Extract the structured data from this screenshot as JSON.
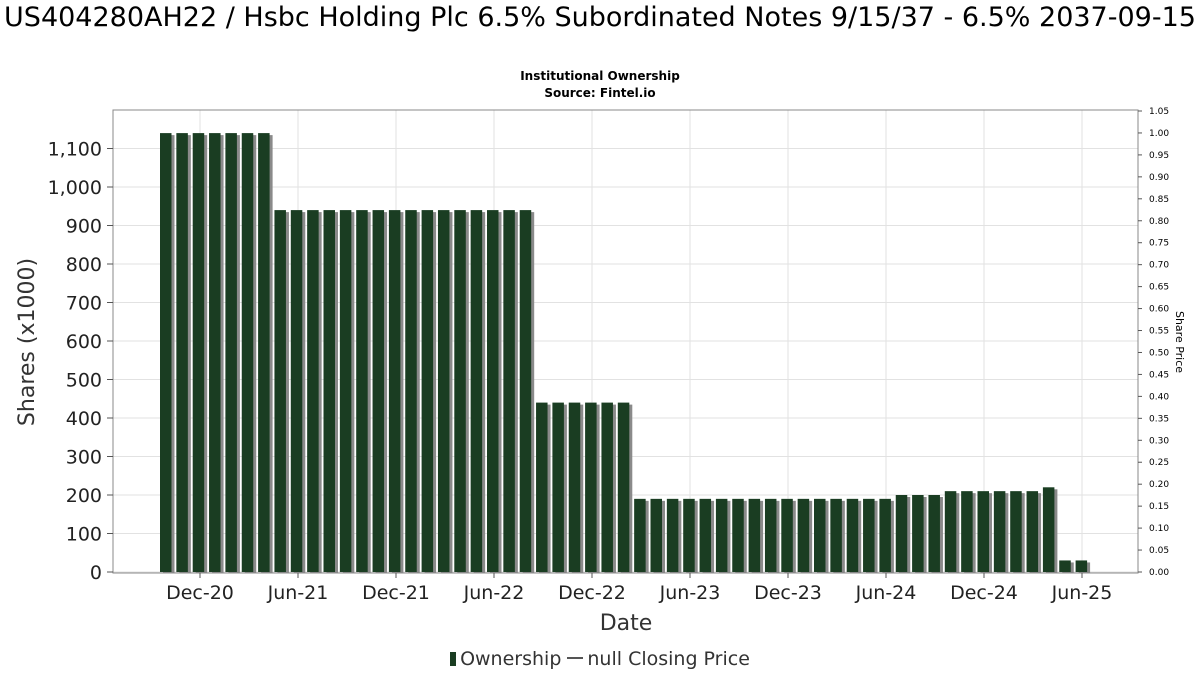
{
  "chart_data": {
    "type": "bar",
    "title": "US404280AH22 / Hsbc Holding Plc 6.5% Subordinated Notes 9/15/37 - 6.5% 2037-09-15",
    "subtitle_lines": [
      "Institutional Ownership",
      "Source: Fintel.io"
    ],
    "xlabel": "Date",
    "ylabel": "Shares (x1000)",
    "y2label": "Share Price",
    "ylim": [
      0,
      1200
    ],
    "y2lim": [
      0,
      1.05
    ],
    "yticks": [
      0,
      100,
      200,
      300,
      400,
      500,
      600,
      700,
      800,
      900,
      1000,
      1100
    ],
    "ytick_labels": [
      "0",
      "100",
      "200",
      "300",
      "400",
      "500",
      "600",
      "700",
      "800",
      "900",
      "1,000",
      "1,100"
    ],
    "y2ticks": [
      0.0,
      0.05,
      0.1,
      0.15,
      0.2,
      0.25,
      0.3,
      0.35,
      0.4,
      0.45,
      0.5,
      0.55,
      0.6,
      0.65,
      0.7,
      0.75,
      0.8,
      0.85,
      0.9,
      0.95,
      1.0,
      1.05
    ],
    "y2tick_labels": [
      "0.00",
      "0.05",
      "0.10",
      "0.15",
      "0.20",
      "0.25",
      "0.30",
      "0.35",
      "0.40",
      "0.45",
      "0.50",
      "0.55",
      "0.60",
      "0.65",
      "0.70",
      "0.75",
      "0.80",
      "0.85",
      "0.90",
      "0.95",
      "1.00",
      "1.05"
    ],
    "xticks": [
      "Dec-20",
      "Jun-21",
      "Dec-21",
      "Jun-22",
      "Dec-22",
      "Jun-23",
      "Dec-23",
      "Jun-24",
      "Dec-24",
      "Jun-25"
    ],
    "grid": true,
    "legend_position": "bottom",
    "legend": [
      "Ownership",
      "null Closing Price"
    ],
    "series": [
      {
        "name": "Ownership",
        "color": "#1a3d22",
        "shadow_color": "#8a8a8a",
        "values": [
          1140,
          1140,
          1140,
          1140,
          1140,
          1140,
          1140,
          940,
          940,
          940,
          940,
          940,
          940,
          940,
          940,
          940,
          940,
          940,
          940,
          940,
          940,
          940,
          940,
          440,
          440,
          440,
          440,
          440,
          440,
          190,
          190,
          190,
          190,
          190,
          190,
          190,
          190,
          190,
          190,
          190,
          190,
          190,
          190,
          190,
          190,
          200,
          200,
          200,
          210,
          210,
          210,
          210,
          210,
          210,
          220,
          30,
          30
        ]
      }
    ]
  }
}
